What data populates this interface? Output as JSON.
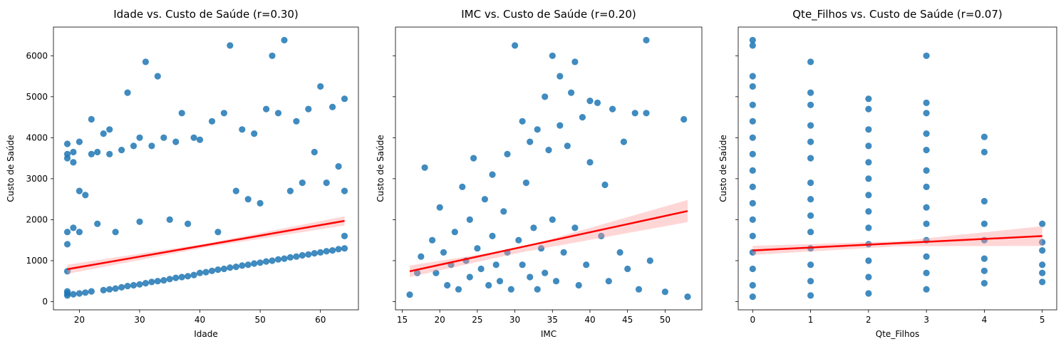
{
  "colors": {
    "points": "#1f77b4",
    "fit_line": "#ff0000",
    "ci_band": "#ff9999"
  },
  "chart_data": [
    {
      "type": "scatter",
      "title": "Idade vs. Custo de Saúde (r=0.30)",
      "xlabel": "Idade",
      "ylabel": "Custo de Saúde",
      "xlim": [
        15.7,
        66.3
      ],
      "ylim": [
        -200,
        6700
      ],
      "xticks": [
        20,
        30,
        40,
        50,
        60
      ],
      "yticks": [
        0,
        1000,
        2000,
        3000,
        4000,
        5000,
        6000
      ],
      "show_ylabels": true,
      "fit": {
        "x": [
          18,
          64
        ],
        "y": [
          790,
          1970
        ]
      },
      "ci": {
        "x": [
          18,
          41,
          64
        ],
        "upper": [
          900,
          1415,
          2080
        ],
        "lower": [
          680,
          1325,
          1860
        ]
      },
      "points": [
        [
          18,
          150
        ],
        [
          18,
          250
        ],
        [
          18,
          200
        ],
        [
          18,
          1400
        ],
        [
          18,
          1700
        ],
        [
          18,
          3500
        ],
        [
          18,
          3600
        ],
        [
          18,
          3850
        ],
        [
          18,
          740
        ],
        [
          19,
          180
        ],
        [
          19,
          3400
        ],
        [
          19,
          1800
        ],
        [
          19,
          3650
        ],
        [
          20,
          200
        ],
        [
          20,
          1700
        ],
        [
          20,
          3900
        ],
        [
          20,
          2700
        ],
        [
          21,
          220
        ],
        [
          21,
          2600
        ],
        [
          22,
          250
        ],
        [
          22,
          3600
        ],
        [
          22,
          4450
        ],
        [
          23,
          3650
        ],
        [
          23,
          1900
        ],
        [
          24,
          280
        ],
        [
          24,
          4100
        ],
        [
          25,
          300
        ],
        [
          25,
          3600
        ],
        [
          25,
          4200
        ],
        [
          26,
          320
        ],
        [
          26,
          1700
        ],
        [
          27,
          350
        ],
        [
          27,
          3700
        ],
        [
          28,
          380
        ],
        [
          28,
          5100
        ],
        [
          29,
          400
        ],
        [
          29,
          3800
        ],
        [
          30,
          420
        ],
        [
          30,
          4000
        ],
        [
          30,
          1950
        ],
        [
          31,
          450
        ],
        [
          31,
          5850
        ],
        [
          32,
          480
        ],
        [
          32,
          3800
        ],
        [
          33,
          500
        ],
        [
          33,
          5500
        ],
        [
          34,
          520
        ],
        [
          34,
          4000
        ],
        [
          35,
          550
        ],
        [
          35,
          2000
        ],
        [
          36,
          580
        ],
        [
          36,
          3900
        ],
        [
          37,
          600
        ],
        [
          37,
          4600
        ],
        [
          38,
          620
        ],
        [
          38,
          1900
        ],
        [
          39,
          650
        ],
        [
          39,
          4000
        ],
        [
          40,
          700
        ],
        [
          40,
          3950
        ],
        [
          41,
          720
        ],
        [
          42,
          750
        ],
        [
          42,
          4400
        ],
        [
          43,
          780
        ],
        [
          43,
          1700
        ],
        [
          44,
          800
        ],
        [
          44,
          4600
        ],
        [
          45,
          830
        ],
        [
          45,
          6250
        ],
        [
          46,
          850
        ],
        [
          46,
          2700
        ],
        [
          47,
          880
        ],
        [
          47,
          4200
        ],
        [
          48,
          900
        ],
        [
          48,
          2500
        ],
        [
          49,
          930
        ],
        [
          49,
          4100
        ],
        [
          50,
          950
        ],
        [
          50,
          2400
        ],
        [
          51,
          980
        ],
        [
          51,
          4700
        ],
        [
          52,
          1000
        ],
        [
          52,
          6000
        ],
        [
          53,
          1030
        ],
        [
          53,
          4600
        ],
        [
          54,
          1050
        ],
        [
          54,
          6380
        ],
        [
          55,
          1080
        ],
        [
          55,
          2700
        ],
        [
          56,
          1100
        ],
        [
          56,
          4400
        ],
        [
          57,
          1130
        ],
        [
          57,
          2900
        ],
        [
          58,
          1150
        ],
        [
          58,
          4700
        ],
        [
          59,
          1180
        ],
        [
          59,
          3650
        ],
        [
          60,
          1200
        ],
        [
          60,
          5250
        ],
        [
          61,
          1230
        ],
        [
          61,
          2900
        ],
        [
          62,
          1250
        ],
        [
          62,
          4750
        ],
        [
          63,
          1280
        ],
        [
          63,
          3300
        ],
        [
          64,
          1300
        ],
        [
          64,
          4950
        ],
        [
          64,
          1600
        ],
        [
          64,
          2700
        ]
      ]
    },
    {
      "type": "scatter",
      "title": "IMC vs. Custo de Saúde (r=0.20)",
      "xlabel": "IMC",
      "ylabel": "Custo de Saúde",
      "xlim": [
        14.1,
        54.9
      ],
      "ylim": [
        -200,
        6700
      ],
      "xticks": [
        15,
        20,
        25,
        30,
        35,
        40,
        45,
        50
      ],
      "yticks": [
        0,
        1000,
        2000,
        3000,
        4000,
        5000,
        6000
      ],
      "show_ylabels": false,
      "fit": {
        "x": [
          16,
          53
        ],
        "y": [
          740,
          2210
        ]
      },
      "ci": {
        "x": [
          16,
          30.5,
          53
        ],
        "upper": [
          880,
          1300,
          2480
        ],
        "lower": [
          600,
          1190,
          1940
        ]
      },
      "points": [
        [
          16,
          170
        ],
        [
          17,
          700
        ],
        [
          17.5,
          1100
        ],
        [
          18,
          3270
        ],
        [
          19,
          1500
        ],
        [
          19.5,
          700
        ],
        [
          20,
          2300
        ],
        [
          20.5,
          1200
        ],
        [
          21,
          400
        ],
        [
          21.5,
          900
        ],
        [
          22,
          1700
        ],
        [
          22.5,
          300
        ],
        [
          23,
          2800
        ],
        [
          23.5,
          1000
        ],
        [
          24,
          600
        ],
        [
          24,
          2000
        ],
        [
          24.5,
          3500
        ],
        [
          25,
          1300
        ],
        [
          25.5,
          800
        ],
        [
          26,
          2500
        ],
        [
          26.5,
          400
        ],
        [
          27,
          3100
        ],
        [
          27,
          1600
        ],
        [
          27.5,
          900
        ],
        [
          28,
          500
        ],
        [
          28.5,
          2200
        ],
        [
          29,
          1200
        ],
        [
          29.5,
          300
        ],
        [
          29,
          3600
        ],
        [
          30,
          6250
        ],
        [
          30.5,
          1500
        ],
        [
          31,
          900
        ],
        [
          31,
          4400
        ],
        [
          31.5,
          2900
        ],
        [
          32,
          600
        ],
        [
          32,
          3900
        ],
        [
          32.5,
          1800
        ],
        [
          33,
          4200
        ],
        [
          33,
          300
        ],
        [
          33.5,
          1300
        ],
        [
          34,
          5000
        ],
        [
          34,
          700
        ],
        [
          34.5,
          3700
        ],
        [
          35,
          6000
        ],
        [
          35,
          2000
        ],
        [
          35.5,
          500
        ],
        [
          36,
          4300
        ],
        [
          36,
          5500
        ],
        [
          36.5,
          1200
        ],
        [
          37,
          3800
        ],
        [
          37.5,
          5100
        ],
        [
          38,
          5850
        ],
        [
          38,
          1800
        ],
        [
          38.5,
          400
        ],
        [
          39,
          4500
        ],
        [
          39.5,
          900
        ],
        [
          40,
          4900
        ],
        [
          40,
          3400
        ],
        [
          41,
          4850
        ],
        [
          41.5,
          1600
        ],
        [
          42,
          2850
        ],
        [
          42.5,
          500
        ],
        [
          43,
          4700
        ],
        [
          44,
          1200
        ],
        [
          44.5,
          3900
        ],
        [
          45,
          800
        ],
        [
          46,
          4600
        ],
        [
          46.5,
          300
        ],
        [
          47.5,
          6380
        ],
        [
          47.5,
          4600
        ],
        [
          48,
          1000
        ],
        [
          50,
          240
        ],
        [
          52.5,
          4450
        ],
        [
          53,
          120
        ]
      ]
    },
    {
      "type": "scatter",
      "title": "Qte_Filhos vs. Custo de Saúde (r=0.07)",
      "xlabel": "Qte_Filhos",
      "ylabel": "Custo de Saúde",
      "xlim": [
        -0.25,
        5.25
      ],
      "ylim": [
        -200,
        6700
      ],
      "xticks": [
        0,
        1,
        2,
        3,
        4,
        5
      ],
      "yticks": [
        0,
        1000,
        2000,
        3000,
        4000,
        5000,
        6000
      ],
      "show_ylabels": false,
      "fit": {
        "x": [
          0,
          5
        ],
        "y": [
          1250,
          1600
        ]
      },
      "ci": {
        "x": [
          0,
          2.5,
          5
        ],
        "upper": [
          1360,
          1470,
          1840
        ],
        "lower": [
          1140,
          1350,
          1360
        ]
      },
      "points": [
        [
          0,
          120
        ],
        [
          0,
          400
        ],
        [
          0,
          800
        ],
        [
          0,
          1200
        ],
        [
          0,
          1600
        ],
        [
          0,
          2000
        ],
        [
          0,
          2400
        ],
        [
          0,
          2800
        ],
        [
          0,
          3200
        ],
        [
          0,
          3600
        ],
        [
          0,
          4000
        ],
        [
          0,
          4400
        ],
        [
          0,
          4800
        ],
        [
          0,
          5250
        ],
        [
          0,
          5500
        ],
        [
          0,
          6250
        ],
        [
          0,
          6380
        ],
        [
          1,
          150
        ],
        [
          1,
          500
        ],
        [
          1,
          900
        ],
        [
          1,
          1300
        ],
        [
          1,
          1700
        ],
        [
          1,
          2100
        ],
        [
          1,
          2500
        ],
        [
          1,
          2900
        ],
        [
          1,
          3500
        ],
        [
          1,
          3900
        ],
        [
          1,
          4300
        ],
        [
          1,
          4800
        ],
        [
          1,
          5100
        ],
        [
          1,
          5850
        ],
        [
          2,
          200
        ],
        [
          2,
          600
        ],
        [
          2,
          1000
        ],
        [
          2,
          1400
        ],
        [
          2,
          1800
        ],
        [
          2,
          2200
        ],
        [
          2,
          2600
        ],
        [
          2,
          3000
        ],
        [
          2,
          3400
        ],
        [
          2,
          3800
        ],
        [
          2,
          4200
        ],
        [
          2,
          4700
        ],
        [
          2,
          4950
        ],
        [
          3,
          300
        ],
        [
          3,
          700
        ],
        [
          3,
          1100
        ],
        [
          3,
          1500
        ],
        [
          3,
          1900
        ],
        [
          3,
          2300
        ],
        [
          3,
          2800
        ],
        [
          3,
          3200
        ],
        [
          3,
          3700
        ],
        [
          3,
          4100
        ],
        [
          3,
          4600
        ],
        [
          3,
          4850
        ],
        [
          3,
          6000
        ],
        [
          4,
          450
        ],
        [
          4,
          750
        ],
        [
          4,
          1050
        ],
        [
          4,
          1500
        ],
        [
          4,
          1900
        ],
        [
          4,
          2450
        ],
        [
          4,
          3650
        ],
        [
          4,
          4020
        ],
        [
          5,
          480
        ],
        [
          5,
          700
        ],
        [
          5,
          900
        ],
        [
          5,
          1250
        ],
        [
          5,
          1450
        ],
        [
          5,
          1900
        ]
      ]
    }
  ]
}
